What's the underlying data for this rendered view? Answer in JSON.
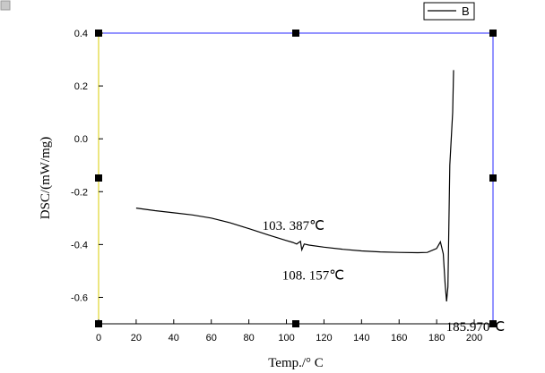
{
  "chart_data": {
    "type": "line",
    "xlabel": "Temp./° C",
    "ylabel": "DSC/(mW/mg)",
    "xlim": [
      0,
      210
    ],
    "ylim": [
      -0.7,
      0.4
    ],
    "x_ticks": [
      0,
      20,
      40,
      60,
      80,
      100,
      120,
      140,
      160,
      180,
      200
    ],
    "y_ticks": [
      0.4,
      0.2,
      0.0,
      -0.2,
      -0.4,
      -0.6
    ],
    "y_tick_labels": [
      "0.4",
      "0.2",
      "0.0",
      "-0.2",
      "-0.4",
      "-0.6"
    ],
    "grid": false,
    "legend_position": "top-right",
    "series": [
      {
        "name": "B",
        "color": "#000000",
        "points": [
          [
            20,
            -0.262
          ],
          [
            30,
            -0.272
          ],
          [
            40,
            -0.28
          ],
          [
            50,
            -0.288
          ],
          [
            60,
            -0.3
          ],
          [
            70,
            -0.318
          ],
          [
            80,
            -0.34
          ],
          [
            90,
            -0.363
          ],
          [
            100,
            -0.385
          ],
          [
            103.4,
            -0.392
          ],
          [
            105.5,
            -0.398
          ],
          [
            107.5,
            -0.388
          ],
          [
            108.2,
            -0.42
          ],
          [
            109.5,
            -0.398
          ],
          [
            112,
            -0.402
          ],
          [
            120,
            -0.41
          ],
          [
            130,
            -0.418
          ],
          [
            140,
            -0.424
          ],
          [
            150,
            -0.428
          ],
          [
            160,
            -0.43
          ],
          [
            170,
            -0.431
          ],
          [
            175,
            -0.43
          ],
          [
            180,
            -0.415
          ],
          [
            182,
            -0.39
          ],
          [
            183.5,
            -0.435
          ],
          [
            184.5,
            -0.55
          ],
          [
            185.3,
            -0.615
          ],
          [
            186,
            -0.56
          ],
          [
            187,
            -0.1
          ],
          [
            188.5,
            0.1
          ],
          [
            189,
            0.26
          ]
        ]
      }
    ],
    "annotations": [
      {
        "text": "103. 387℃",
        "x": 103.4,
        "y": -0.392
      },
      {
        "text": "108. 157℃",
        "x": 108.2,
        "y": -0.42
      },
      {
        "text": "185.970℃",
        "x": 185.97,
        "y": -0.615
      }
    ]
  }
}
